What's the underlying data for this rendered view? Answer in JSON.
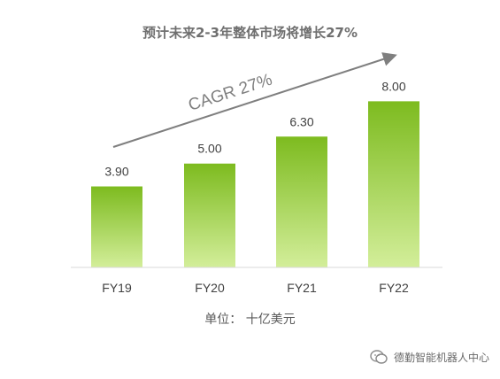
{
  "chart_data": {
    "type": "bar",
    "title": "预计未来2-3年整体市场将增长27%",
    "categories": [
      "FY19",
      "FY20",
      "FY21",
      "FY22"
    ],
    "values": [
      3.9,
      5.0,
      6.3,
      8.0
    ],
    "value_labels": [
      "3.90",
      "5.00",
      "6.30",
      "8.00"
    ],
    "annotation": "CAGR 27%",
    "unit_label": "单位： 十亿美元",
    "ylim": [
      0,
      8.4
    ],
    "grid": false,
    "colors": {
      "bar_top": "#7dbb1f",
      "bar_bottom": "#d3ee9a",
      "arrow": "#7f7f7f",
      "text": "#404040"
    }
  },
  "watermark": {
    "text": "德勤智能机器人中心",
    "icon": "wechat-icon"
  }
}
